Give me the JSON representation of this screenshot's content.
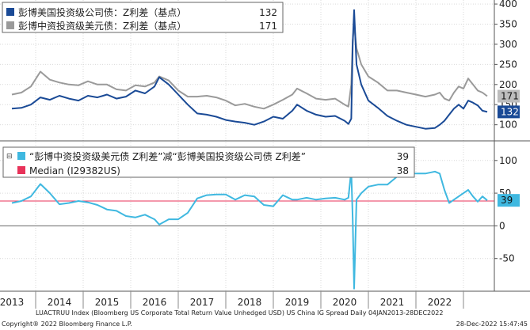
{
  "chart_data": [
    {
      "type": "line",
      "panel": "top",
      "ylim": [
        60,
        410
      ],
      "yticks": [
        100,
        150,
        200,
        250,
        300,
        350,
        400
      ],
      "grid": true,
      "legend_placement": "top-left",
      "series": [
        {
          "name": "彭博美国投资级公司债：Z利差（基点）",
          "legend_value": "132",
          "last_label": "132",
          "color": "#1a4a96",
          "x": [
            2013.0,
            2013.2,
            2013.4,
            2013.6,
            2013.8,
            2014.0,
            2014.2,
            2014.4,
            2014.6,
            2014.8,
            2015.0,
            2015.2,
            2015.4,
            2015.6,
            2015.8,
            2016.0,
            2016.1,
            2016.3,
            2016.5,
            2016.7,
            2016.9,
            2017.1,
            2017.3,
            2017.5,
            2017.7,
            2017.9,
            2018.1,
            2018.3,
            2018.5,
            2018.7,
            2018.9,
            2019.0,
            2019.2,
            2019.4,
            2019.6,
            2019.8,
            2020.0,
            2020.08,
            2020.14,
            2020.17,
            2020.2,
            2020.25,
            2020.35,
            2020.5,
            2020.7,
            2020.9,
            2021.1,
            2021.3,
            2021.5,
            2021.7,
            2021.9,
            2022.0,
            2022.1,
            2022.2,
            2022.3,
            2022.4,
            2022.5,
            2022.6,
            2022.7,
            2022.8,
            2022.9,
            2023.0
          ],
          "y": [
            140,
            142,
            150,
            168,
            162,
            172,
            165,
            160,
            172,
            168,
            175,
            165,
            170,
            185,
            178,
            195,
            218,
            200,
            175,
            150,
            128,
            125,
            120,
            112,
            108,
            105,
            100,
            108,
            120,
            115,
            135,
            150,
            135,
            125,
            120,
            122,
            110,
            102,
            115,
            300,
            385,
            250,
            200,
            160,
            142,
            122,
            110,
            100,
            95,
            90,
            92,
            100,
            110,
            125,
            140,
            150,
            140,
            160,
            155,
            148,
            135,
            132
          ]
        },
        {
          "name": "彭博中资投资级美元债：Z利差（基点）",
          "legend_value": "171",
          "last_label": "171",
          "color": "#9a9a9a",
          "x": [
            2013.0,
            2013.2,
            2013.4,
            2013.6,
            2013.8,
            2014.0,
            2014.2,
            2014.4,
            2014.6,
            2014.8,
            2015.0,
            2015.2,
            2015.4,
            2015.6,
            2015.8,
            2016.0,
            2016.1,
            2016.3,
            2016.5,
            2016.7,
            2016.9,
            2017.1,
            2017.3,
            2017.5,
            2017.7,
            2017.9,
            2018.1,
            2018.3,
            2018.5,
            2018.7,
            2018.9,
            2019.0,
            2019.2,
            2019.4,
            2019.6,
            2019.8,
            2020.0,
            2020.08,
            2020.14,
            2020.17,
            2020.2,
            2020.25,
            2020.35,
            2020.5,
            2020.7,
            2020.9,
            2021.1,
            2021.3,
            2021.5,
            2021.7,
            2021.9,
            2022.0,
            2022.1,
            2022.2,
            2022.3,
            2022.4,
            2022.5,
            2022.6,
            2022.7,
            2022.8,
            2022.9,
            2023.0
          ],
          "y": [
            175,
            180,
            195,
            232,
            212,
            205,
            200,
            198,
            208,
            200,
            200,
            188,
            185,
            198,
            195,
            205,
            220,
            210,
            185,
            170,
            170,
            172,
            168,
            160,
            148,
            152,
            145,
            140,
            150,
            162,
            175,
            190,
            178,
            165,
            162,
            165,
            150,
            145,
            200,
            310,
            350,
            290,
            250,
            220,
            205,
            185,
            185,
            180,
            175,
            170,
            175,
            180,
            165,
            160,
            180,
            195,
            190,
            215,
            200,
            185,
            180,
            171
          ]
        }
      ]
    },
    {
      "type": "line",
      "panel": "bottom",
      "ylim": [
        -100,
        130
      ],
      "yticks": [
        -50,
        0,
        50,
        100
      ],
      "grid": true,
      "legend_placement": "top-left",
      "series": [
        {
          "name": "“彭博中资投资级美元债 Z利差”减“彭博美国投资级公司债 Z利差”",
          "legend_value": "39",
          "last_label": "39",
          "color": "#3fb8e0",
          "x": [
            2013.0,
            2013.2,
            2013.4,
            2013.6,
            2013.8,
            2014.0,
            2014.2,
            2014.4,
            2014.6,
            2014.8,
            2015.0,
            2015.2,
            2015.4,
            2015.6,
            2015.8,
            2016.0,
            2016.1,
            2016.3,
            2016.5,
            2016.7,
            2016.9,
            2017.1,
            2017.3,
            2017.5,
            2017.7,
            2017.9,
            2018.1,
            2018.3,
            2018.5,
            2018.7,
            2018.9,
            2019.0,
            2019.2,
            2019.4,
            2019.6,
            2019.8,
            2020.0,
            2020.08,
            2020.14,
            2020.17,
            2020.2,
            2020.25,
            2020.35,
            2020.5,
            2020.7,
            2020.9,
            2021.1,
            2021.3,
            2021.5,
            2021.7,
            2021.9,
            2022.0,
            2022.1,
            2022.2,
            2022.3,
            2022.4,
            2022.5,
            2022.6,
            2022.7,
            2022.8,
            2022.9,
            2023.0
          ],
          "y": [
            35,
            38,
            45,
            64,
            50,
            33,
            35,
            38,
            36,
            32,
            25,
            23,
            15,
            13,
            17,
            10,
            2,
            10,
            10,
            20,
            42,
            47,
            48,
            48,
            40,
            47,
            45,
            32,
            30,
            47,
            40,
            40,
            43,
            40,
            42,
            43,
            40,
            43,
            85,
            10,
            -96,
            40,
            50,
            60,
            63,
            63,
            75,
            80,
            80,
            80,
            83,
            80,
            55,
            35,
            40,
            45,
            50,
            55,
            45,
            37,
            45,
            39
          ]
        }
      ],
      "reference_lines": [
        {
          "name": "Median (I29382US)",
          "legend_value": "38",
          "value": 38,
          "color": "#e8335a"
        }
      ]
    }
  ],
  "x_axis": {
    "xlim": [
      2012.75,
      2023.15
    ],
    "ticks": [
      "2013",
      "2014",
      "2015",
      "2016",
      "2017",
      "2018",
      "2019",
      "2020",
      "2021",
      "2022"
    ]
  },
  "footer": {
    "line1_left": "LUACTRUU Index (Bloomberg US Corporate Total Return Value Unhedged USD) US China IG Spread Daily 04JAN2013-28DEC2022",
    "line2_left": "Copyright® 2022 Bloomberg Finance L.P.",
    "line2_right": "28-Dec-2022 15:47:45"
  }
}
